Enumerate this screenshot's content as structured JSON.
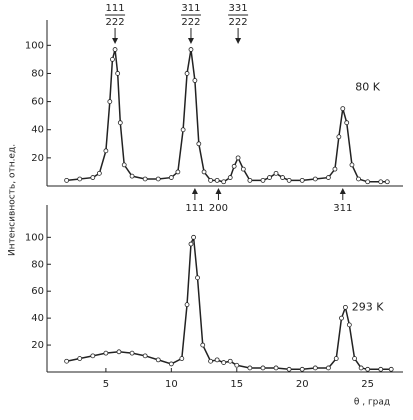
{
  "chart_data": [
    {
      "type": "line",
      "xlim": [
        0.5,
        27.7
      ],
      "ylim": [
        0,
        118
      ],
      "yticks": [
        20,
        40,
        60,
        80,
        100
      ],
      "ylabel": "Интенсивность, отн.ед.",
      "color": "#222222",
      "x": [
        2,
        3,
        4,
        4.5,
        5,
        5.3,
        5.5,
        5.7,
        5.9,
        6.1,
        6.4,
        7,
        8,
        9,
        10,
        10.5,
        10.9,
        11.2,
        11.5,
        11.8,
        12.1,
        12.5,
        13,
        13.5,
        14,
        14.5,
        14.8,
        15.1,
        15.5,
        16,
        17,
        17.5,
        18,
        18.5,
        19,
        20,
        21,
        22,
        22.5,
        22.8,
        23.1,
        23.4,
        23.8,
        24.3,
        25,
        26,
        26.5
      ],
      "values": [
        4,
        5,
        6,
        9,
        25,
        60,
        90,
        97,
        80,
        45,
        15,
        7,
        5,
        5,
        6,
        10,
        40,
        80,
        97,
        75,
        30,
        10,
        4,
        4,
        3,
        6,
        14,
        20,
        12,
        4,
        4,
        6,
        9,
        6,
        4,
        4,
        5,
        6,
        12,
        35,
        55,
        45,
        15,
        5,
        3,
        3,
        3
      ],
      "peak_labels": [
        {
          "x": 5.7,
          "top": "111",
          "bottom": "222"
        },
        {
          "x": 11.5,
          "top": "311",
          "bottom": "222"
        },
        {
          "x": 15.1,
          "top": "331",
          "bottom": "222"
        }
      ],
      "markers": [
        {
          "x": 11.8,
          "label": "111"
        },
        {
          "x": 13.6,
          "label": "200"
        },
        {
          "x": 23.1,
          "label": "311"
        }
      ],
      "annotations": [
        {
          "text": "80 K",
          "x": 25.0,
          "y": 70
        }
      ]
    },
    {
      "type": "line",
      "xlim": [
        0.5,
        27.7
      ],
      "ylim": [
        0,
        124
      ],
      "yticks": [
        20,
        40,
        60,
        80,
        100
      ],
      "xticks": [
        5,
        10,
        15,
        20,
        25
      ],
      "xlabel": "θ , град",
      "color": "#222222",
      "x": [
        2,
        3,
        4,
        5,
        6,
        7,
        8,
        9,
        10,
        10.8,
        11.2,
        11.5,
        11.7,
        12,
        12.4,
        13,
        13.5,
        14,
        14.5,
        15,
        16,
        17,
        18,
        19,
        20,
        21,
        22,
        22.6,
        23,
        23.3,
        23.6,
        24,
        24.5,
        25,
        26,
        26.8
      ],
      "values": [
        8,
        10,
        12,
        14,
        15,
        14,
        12,
        9,
        6,
        10,
        50,
        95,
        100,
        70,
        20,
        8,
        9,
        7,
        8,
        5,
        3,
        3,
        3,
        2,
        2,
        3,
        3,
        10,
        40,
        48,
        35,
        10,
        3,
        2,
        2,
        2
      ],
      "annotations": [
        {
          "text": "293 K",
          "x": 25.0,
          "y": 48
        }
      ]
    }
  ]
}
